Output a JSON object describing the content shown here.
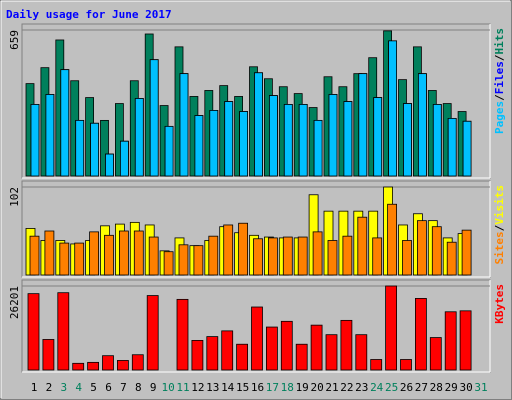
{
  "chart_data": [
    {
      "type": "bar",
      "title": "Daily usage for June 2017",
      "ylim": [
        0,
        659
      ],
      "yticks": [
        659
      ],
      "grid": true,
      "legend_separator": "/",
      "series": [
        {
          "name": "Hits",
          "color": "#00805c",
          "values": [
            417,
            489,
            614,
            430,
            354,
            251,
            327,
            430,
            641,
            318,
            583,
            359,
            386,
            408,
            359,
            493,
            439,
            403,
            372,
            309,
            448,
            403,
            462,
            534,
            655,
            435,
            583,
            386,
            327,
            291,
            null
          ]
        },
        {
          "name": "Files",
          "color": "#0000ff",
          "values": [
            323,
            368,
            480,
            251,
            238,
            99,
            157,
            350,
            525,
            224,
            462,
            273,
            296,
            336,
            291,
            466,
            363,
            323,
            323,
            251,
            368,
            336,
            462,
            354,
            610,
            327,
            462,
            323,
            260,
            247,
            null
          ]
        },
        {
          "name": "Pages",
          "color": "#00c0ff",
          "values": [
            323,
            368,
            480,
            251,
            238,
            99,
            157,
            350,
            525,
            224,
            462,
            273,
            296,
            336,
            291,
            466,
            363,
            323,
            323,
            251,
            368,
            336,
            462,
            354,
            610,
            327,
            462,
            323,
            260,
            247,
            null
          ]
        }
      ]
    },
    {
      "type": "bar",
      "ylim": [
        0,
        102
      ],
      "yticks": [
        102
      ],
      "grid": true,
      "legend_separator": "/",
      "series": [
        {
          "name": "Visits",
          "color": "#ffff00",
          "values": [
            54,
            40,
            40,
            36,
            40,
            57,
            59,
            61,
            58,
            28,
            43,
            34,
            40,
            56,
            49,
            46,
            44,
            43,
            43,
            93,
            74,
            74,
            74,
            74,
            102,
            58,
            71,
            63,
            43,
            48,
            null
          ]
        },
        {
          "name": "Sites",
          "color": "#ff8000",
          "values": [
            45,
            51,
            37,
            37,
            50,
            46,
            51,
            51,
            44,
            27,
            35,
            34,
            45,
            58,
            60,
            42,
            43,
            44,
            44,
            50,
            40,
            45,
            67,
            43,
            82,
            40,
            63,
            56,
            38,
            52,
            null
          ]
        }
      ]
    },
    {
      "type": "bar",
      "ylim": [
        0,
        26201
      ],
      "yticks": [
        26201
      ],
      "grid": true,
      "categories": [
        "1",
        "2",
        "3",
        "4",
        "5",
        "6",
        "7",
        "8",
        "9",
        "10",
        "11",
        "12",
        "13",
        "14",
        "15",
        "16",
        "17",
        "18",
        "19",
        "20",
        "21",
        "22",
        "23",
        "24",
        "25",
        "26",
        "27",
        "28",
        "29",
        "30",
        "31"
      ],
      "category_colors": [
        "#000000",
        "#000000",
        "#00805c",
        "#00805c",
        "#000000",
        "#000000",
        "#000000",
        "#000000",
        "#000000",
        "#00805c",
        "#00805c",
        "#000000",
        "#000000",
        "#000000",
        "#000000",
        "#000000",
        "#00805c",
        "#00805c",
        "#000000",
        "#000000",
        "#000000",
        "#000000",
        "#000000",
        "#00805c",
        "#00805c",
        "#000000",
        "#000000",
        "#000000",
        "#000000",
        "#000000",
        "#00805c"
      ],
      "series": [
        {
          "name": "KBytes",
          "color": "#ff0000",
          "values": [
            23816,
            9526,
            24114,
            2084,
            2382,
            4465,
            2977,
            4763,
            23221,
            0,
            22030,
            9229,
            10420,
            12206,
            8037,
            19648,
            13397,
            15183,
            8037,
            13992,
            11015,
            15481,
            11015,
            3275,
            26201,
            3275,
            22328,
            10122,
            18160,
            18458,
            null
          ]
        }
      ]
    }
  ]
}
